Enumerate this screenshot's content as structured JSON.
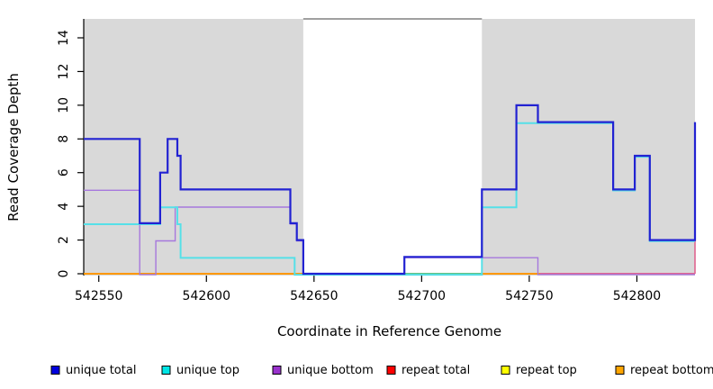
{
  "chart_data": {
    "type": "line",
    "subtype": "step",
    "title": "",
    "xlabel": "Coordinate in Reference Genome",
    "ylabel": "Read Coverage Depth",
    "xlim": [
      542543,
      542827
    ],
    "ylim": [
      0,
      15.13
    ],
    "x_ticks": [
      542550,
      542600,
      542650,
      542700,
      542750,
      542800
    ],
    "y_ticks": [
      0,
      2,
      4,
      6,
      8,
      10,
      12,
      14
    ],
    "grid": false,
    "legend_position": "bottom",
    "background_color": "#ffffff",
    "shaded_region_color": "#d9d9d9",
    "shaded_regions": [
      {
        "x1": 542543,
        "x2": 542645
      },
      {
        "x1": 542728,
        "x2": 542827
      }
    ],
    "gap_top_border": {
      "x1": 542645,
      "x2": 542728,
      "color": "#808080"
    },
    "series": [
      {
        "name": "unique total",
        "color": "#0000dd",
        "line_color": "#2222d2",
        "points": [
          [
            542543,
            8
          ],
          [
            542569,
            3
          ],
          [
            542578.5,
            6
          ],
          [
            542582,
            8
          ],
          [
            542586.5,
            7
          ],
          [
            542588,
            5
          ],
          [
            542639,
            3
          ],
          [
            542642,
            2
          ],
          [
            542645,
            0
          ],
          [
            542692,
            1
          ],
          [
            542728,
            5
          ],
          [
            542744,
            10
          ],
          [
            542754,
            9
          ],
          [
            542789,
            5
          ],
          [
            542799,
            7
          ],
          [
            542806,
            2
          ],
          [
            542827,
            9
          ]
        ]
      },
      {
        "name": "unique top",
        "color": "#00e5e5",
        "line_color": "#55e0e8",
        "points": [
          [
            542543,
            3
          ],
          [
            542578.5,
            4
          ],
          [
            542586.5,
            3
          ],
          [
            542588,
            1
          ],
          [
            542641,
            0
          ],
          [
            542728,
            4
          ],
          [
            542744,
            9
          ],
          [
            542789,
            5
          ],
          [
            542799,
            7
          ],
          [
            542806,
            2
          ],
          [
            542827,
            2
          ]
        ]
      },
      {
        "name": "unique bottom",
        "color": "#9932cc",
        "line_color": "#a678dd",
        "points": [
          [
            542543,
            5
          ],
          [
            542569,
            0
          ],
          [
            542576.5,
            2
          ],
          [
            542585.5,
            4
          ],
          [
            542639,
            3
          ],
          [
            542642,
            2
          ],
          [
            542645,
            0
          ],
          [
            542692,
            1
          ],
          [
            542754,
            0
          ],
          [
            542827,
            0
          ]
        ]
      },
      {
        "name": "repeat total",
        "color": "#ff0000",
        "line_color": "#dd1111",
        "points": [
          [
            542543,
            0
          ],
          [
            542827,
            0
          ]
        ]
      },
      {
        "name": "repeat top",
        "color": "#ffff00",
        "line_color": "#f0e000",
        "points": [
          [
            542543,
            0
          ],
          [
            542827,
            0
          ]
        ]
      },
      {
        "name": "repeat bottom",
        "color": "#ffa500",
        "line_color": "#ff9802",
        "points": [
          [
            542543,
            0
          ],
          [
            542827,
            0
          ]
        ]
      }
    ],
    "zero_line_visible_segments": [
      {
        "x1": 542543,
        "x2": 542645,
        "color": "#ff9802"
      },
      {
        "x1": 542645,
        "x2": 542692,
        "color": "#5a50dd"
      },
      {
        "x1": 542692,
        "x2": 542728,
        "color": "#63c183"
      },
      {
        "x1": 542728,
        "x2": 542755,
        "color": "#ff9802"
      },
      {
        "x1": 542755,
        "x2": 542827,
        "color": "#e06590"
      }
    ],
    "end_spike": {
      "x": 542827,
      "from": 0,
      "to": 2,
      "color": "#e06590"
    }
  },
  "legend": {
    "items": [
      {
        "label": "unique total",
        "color": "#0000dd"
      },
      {
        "label": "unique top",
        "color": "#00e5e5"
      },
      {
        "label": "unique bottom",
        "color": "#9932cc"
      },
      {
        "label": "repeat total",
        "color": "#ff0000"
      },
      {
        "label": "repeat top",
        "color": "#ffff00"
      },
      {
        "label": "repeat bottom",
        "color": "#ffa500"
      }
    ]
  }
}
